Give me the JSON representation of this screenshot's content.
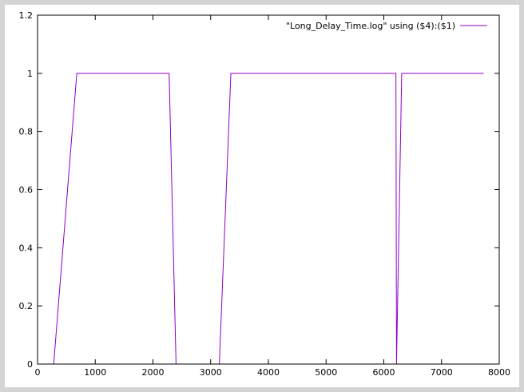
{
  "chart_data": {
    "type": "line",
    "title": "",
    "xlabel": "",
    "ylabel": "",
    "xlim": [
      0,
      8000
    ],
    "ylim": [
      0,
      1.2
    ],
    "x_ticks": [
      0,
      1000,
      2000,
      3000,
      4000,
      5000,
      6000,
      7000,
      8000
    ],
    "x_tick_labels": [
      "0",
      "1000",
      "2000",
      "3000",
      "4000",
      "5000",
      "6000",
      "7000",
      "8000"
    ],
    "y_ticks": [
      0,
      0.2,
      0.4,
      0.6,
      0.8,
      1,
      1.2
    ],
    "y_tick_labels": [
      "0",
      "0.2",
      "0.4",
      "0.6",
      "0.8",
      "1",
      "1.2"
    ],
    "grid": false,
    "legend_position": "top-right",
    "series": [
      {
        "name": "\"Long_Delay_Time.log\" using ($4):($1)",
        "color": "#8b00c8",
        "x": [
          280,
          680,
          2280,
          2400,
          3150,
          3350,
          6210,
          6220,
          6310,
          7730
        ],
        "y": [
          0,
          1,
          1,
          0,
          0,
          1,
          1,
          0,
          1,
          1
        ]
      }
    ]
  }
}
